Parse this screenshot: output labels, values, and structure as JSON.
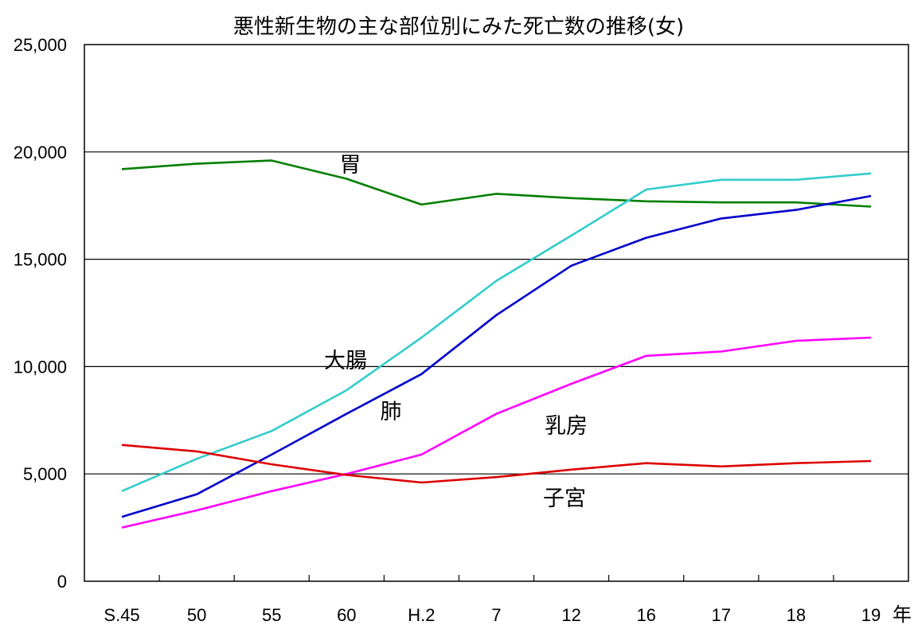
{
  "chart_data": {
    "type": "line",
    "title": "悪性新生物の主な部位別にみた死亡数の推移(女)",
    "categories": [
      "S.45",
      "50",
      "55",
      "60",
      "H.2",
      "7",
      "12",
      "16",
      "17",
      "18",
      "19"
    ],
    "x_unit": "年",
    "ylim": [
      0,
      25000
    ],
    "yticks": [
      0,
      5000,
      10000,
      15000,
      20000,
      25000
    ],
    "ytick_labels": [
      "0",
      "5,000",
      "10,000",
      "15,000",
      "20,000",
      "25,000"
    ],
    "grid": true,
    "series": [
      {
        "name": "胃",
        "color": "#007f00",
        "values": [
          19200,
          19450,
          19600,
          18750,
          17550,
          18050,
          17850,
          17700,
          17650,
          17650,
          17450
        ]
      },
      {
        "name": "大腸",
        "color": "#33cccc",
        "values": [
          4200,
          5700,
          7000,
          8900,
          11350,
          14000,
          16100,
          18250,
          18700,
          18700,
          19000
        ]
      },
      {
        "name": "肺",
        "color": "#0000cc",
        "values": [
          3000,
          4050,
          5900,
          7800,
          9650,
          12400,
          14700,
          16000,
          16900,
          17300,
          17950
        ]
      },
      {
        "name": "乳房",
        "color": "#ff00ff",
        "values": [
          2500,
          3300,
          4200,
          5000,
          5900,
          7800,
          9200,
          10500,
          10700,
          11200,
          11350
        ]
      },
      {
        "name": "子宮",
        "color": "#dd0000",
        "values": [
          6350,
          6050,
          5450,
          4950,
          4600,
          4850,
          5200,
          5500,
          5350,
          5500,
          5600
        ]
      }
    ]
  }
}
